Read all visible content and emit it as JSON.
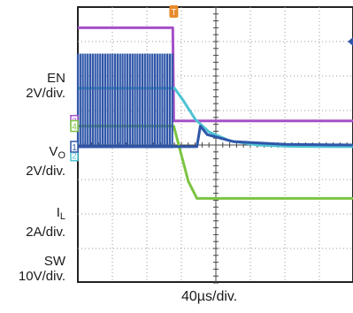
{
  "chart_data": {
    "type": "line",
    "title": "",
    "timebase": "40µs/div.",
    "grid": true,
    "divisions": {
      "x": 8,
      "y": 8
    },
    "trigger_marker": "T",
    "series": [
      {
        "name": "EN",
        "scale": "2V/div.",
        "marker": "3",
        "color": "#a450c8",
        "points": [
          [
            0,
            3.4
          ],
          [
            2.75,
            3.4
          ],
          [
            2.78,
            0.7
          ],
          [
            8,
            0.7
          ]
        ]
      },
      {
        "name": "VO",
        "scale": "2V/div.",
        "marker": "2",
        "color": "#4ec3d3",
        "points": [
          [
            0,
            1.65
          ],
          [
            2.8,
            1.65
          ],
          [
            3.05,
            1.3
          ],
          [
            3.4,
            0.75
          ],
          [
            3.8,
            0.38
          ],
          [
            4.4,
            0.12
          ],
          [
            5.2,
            0.0
          ],
          [
            6.2,
            -0.04
          ],
          [
            8,
            -0.05
          ]
        ]
      },
      {
        "name": "IL",
        "subscript": "L",
        "scale": "2A/div.",
        "marker": "4",
        "color": "#7cc442",
        "points": [
          [
            0,
            0.55
          ],
          [
            2.78,
            0.55
          ],
          [
            3.2,
            -1.05
          ],
          [
            3.45,
            -1.55
          ],
          [
            8,
            -1.55
          ]
        ]
      },
      {
        "name": "SW",
        "scale": "10V/div.",
        "marker": "1",
        "color": "#2f56a8",
        "switching_until": 2.78,
        "high": 2.65,
        "low": -0.05,
        "points": [
          [
            2.78,
            -0.05
          ],
          [
            3.45,
            -0.05
          ],
          [
            3.55,
            0.55
          ],
          [
            3.75,
            0.3
          ],
          [
            4.5,
            0.1
          ],
          [
            6,
            0.02
          ],
          [
            8,
            0.0
          ]
        ]
      }
    ]
  },
  "labels": {
    "en_name": "EN",
    "en_scale": "2V/div.",
    "vo_name": "V",
    "vo_sub": "O",
    "vo_scale": "2V/div.",
    "il_name": "I",
    "il_sub": "L",
    "il_scale": "2A/div.",
    "sw_name": "SW",
    "sw_scale": "10V/div."
  }
}
